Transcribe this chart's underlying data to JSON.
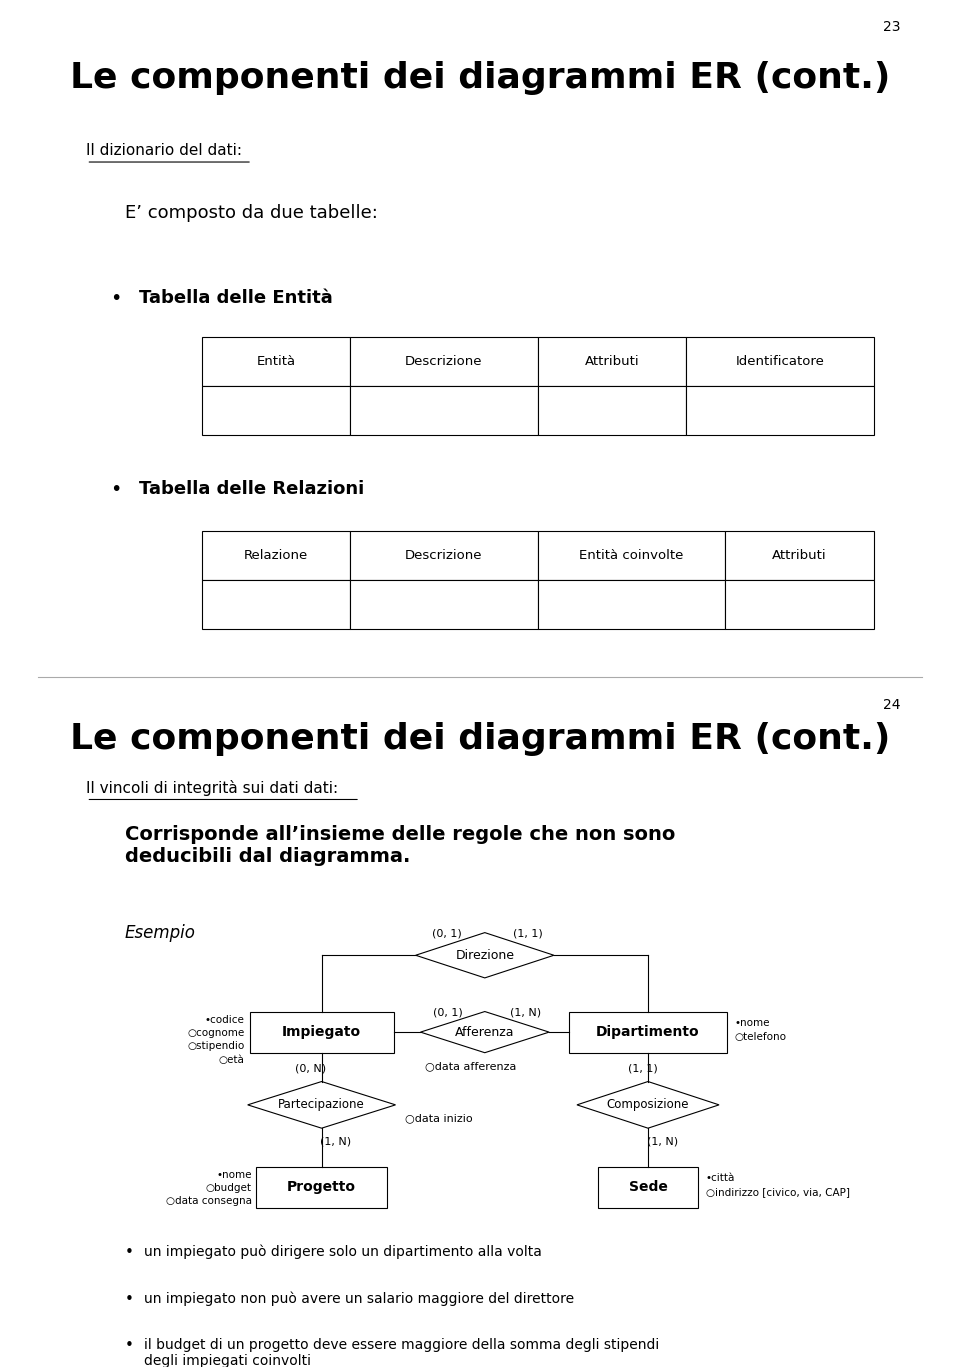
{
  "slide1": {
    "page_num": "23",
    "title": "Le componenti dei diagrammi ER (cont.)",
    "subtitle_underline": "Il dizionario del dati:",
    "body_text": "E’ composto da due tabelle:",
    "bullet1": "Tabella delle Entità",
    "table1_headers": [
      "Entità",
      "Descrizione",
      "Attributi",
      "Identificatore"
    ],
    "bullet2": "Tabella delle Relazioni",
    "table2_headers": [
      "Relazione",
      "Descrizione",
      "Entità coinvolte",
      "Attributi"
    ]
  },
  "slide2": {
    "page_num": "24",
    "title": "Le componenti dei diagrammi ER (cont.)",
    "subtitle_underline": "Il vincoli di integrità sui dati dati:",
    "body_text": "Corrisponde all’insieme delle regole che non sono\ndeducibili dal diagramma.",
    "esempio_label": "Esempio",
    "bullet_points": [
      "un impiegato può dirigere solo un dipartimento alla volta",
      "un impiegato non può avere un salario maggiore del direttore",
      "il budget di un progetto deve essere maggiore della somma degli stipendi\ndegli impiegati coinvolti"
    ]
  },
  "bg_color": "#ffffff",
  "text_color": "#000000",
  "title_fontsize": 26,
  "subtitle_fontsize": 11,
  "body_fontsize": 13,
  "table_fontsize": 10
}
